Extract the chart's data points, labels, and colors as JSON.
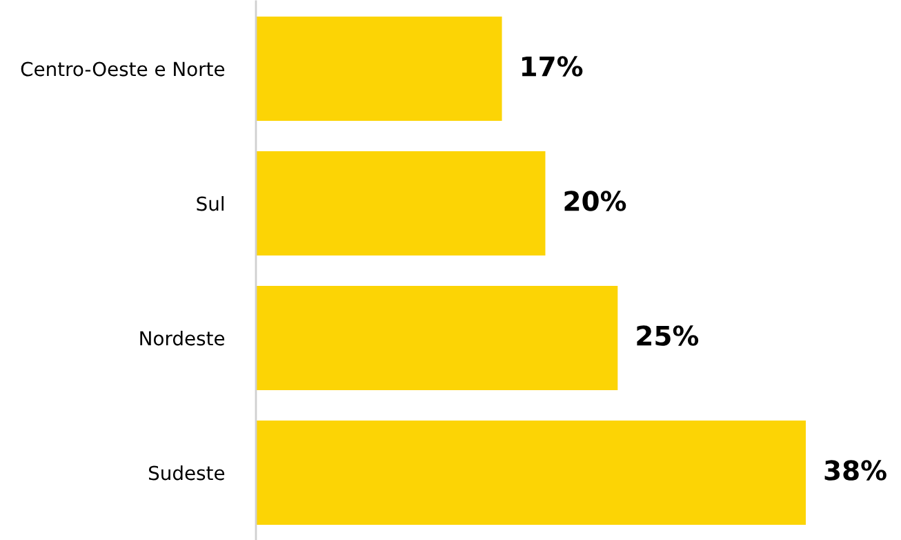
{
  "chart_data": {
    "type": "bar",
    "orientation": "horizontal",
    "categories": [
      "Centro-Oeste e Norte",
      "Sul",
      "Nordeste",
      "Sudeste"
    ],
    "values": [
      17,
      20,
      25,
      38
    ],
    "value_labels": [
      "17%",
      "20%",
      "25%",
      "38%"
    ],
    "color": "#fcd405"
  }
}
